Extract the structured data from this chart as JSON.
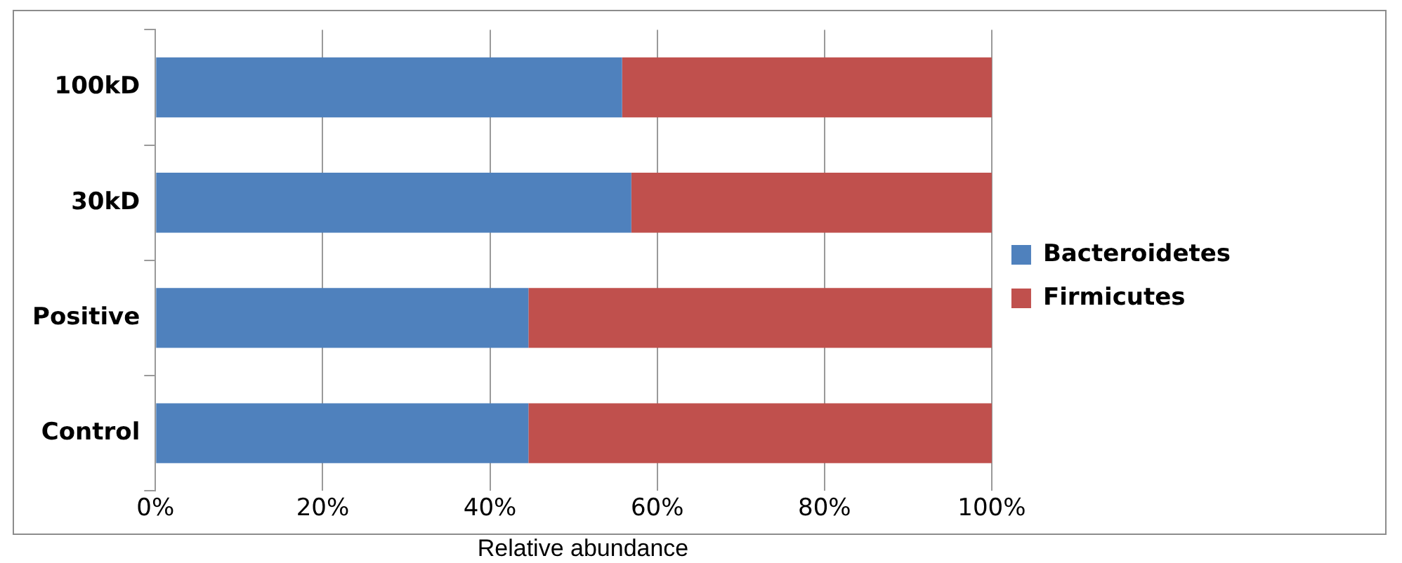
{
  "chart_data": {
    "type": "bar",
    "orientation": "horizontal",
    "stacked": true,
    "xlabel": "Relative abundance",
    "categories": [
      "100kD",
      "30kD",
      "Positive",
      "Control"
    ],
    "series": [
      {
        "name": "Bacteroidetes",
        "color": "#4f81bd",
        "values": [
          55.8,
          56.9,
          44.6,
          44.6
        ]
      },
      {
        "name": "Firmicutes",
        "color": "#c0504d",
        "values": [
          44.2,
          43.1,
          55.4,
          55.4
        ]
      }
    ],
    "xlim": [
      0,
      100
    ],
    "xticks": [
      {
        "value": 0,
        "label": "0%"
      },
      {
        "value": 20,
        "label": "20%"
      },
      {
        "value": 40,
        "label": "40%"
      },
      {
        "value": 60,
        "label": "60%"
      },
      {
        "value": 80,
        "label": "80%"
      },
      {
        "value": 100,
        "label": "100%"
      }
    ],
    "grid": "x",
    "legend": "right"
  }
}
